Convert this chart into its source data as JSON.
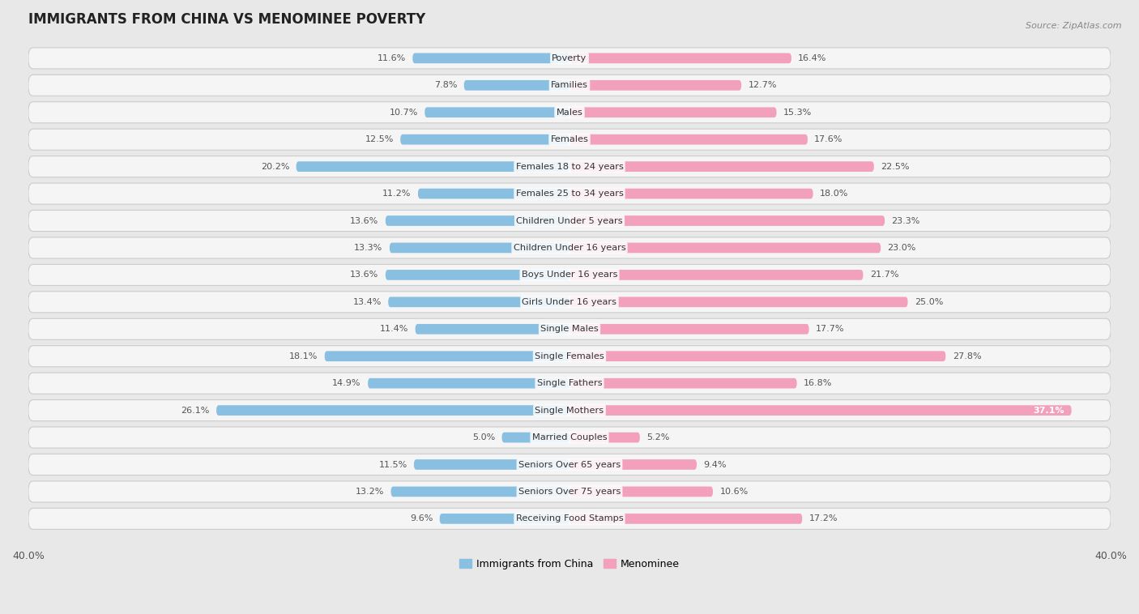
{
  "title": "IMMIGRANTS FROM CHINA VS MENOMINEE POVERTY",
  "source": "Source: ZipAtlas.com",
  "categories": [
    "Poverty",
    "Families",
    "Males",
    "Females",
    "Females 18 to 24 years",
    "Females 25 to 34 years",
    "Children Under 5 years",
    "Children Under 16 years",
    "Boys Under 16 years",
    "Girls Under 16 years",
    "Single Males",
    "Single Females",
    "Single Fathers",
    "Single Mothers",
    "Married Couples",
    "Seniors Over 65 years",
    "Seniors Over 75 years",
    "Receiving Food Stamps"
  ],
  "china_values": [
    11.6,
    7.8,
    10.7,
    12.5,
    20.2,
    11.2,
    13.6,
    13.3,
    13.6,
    13.4,
    11.4,
    18.1,
    14.9,
    26.1,
    5.0,
    11.5,
    13.2,
    9.6
  ],
  "menominee_values": [
    16.4,
    12.7,
    15.3,
    17.6,
    22.5,
    18.0,
    23.3,
    23.0,
    21.7,
    25.0,
    17.7,
    27.8,
    16.8,
    37.1,
    5.2,
    9.4,
    10.6,
    17.2
  ],
  "china_color": "#89bfe0",
  "menominee_color": "#f2a0bb",
  "axis_limit": 40.0,
  "page_bg": "#e8e8e8",
  "row_bg": "#f5f5f5",
  "title_fontsize": 12,
  "label_fontsize": 8.2,
  "value_fontsize": 8.0,
  "tick_fontsize": 9,
  "legend_fontsize": 9
}
